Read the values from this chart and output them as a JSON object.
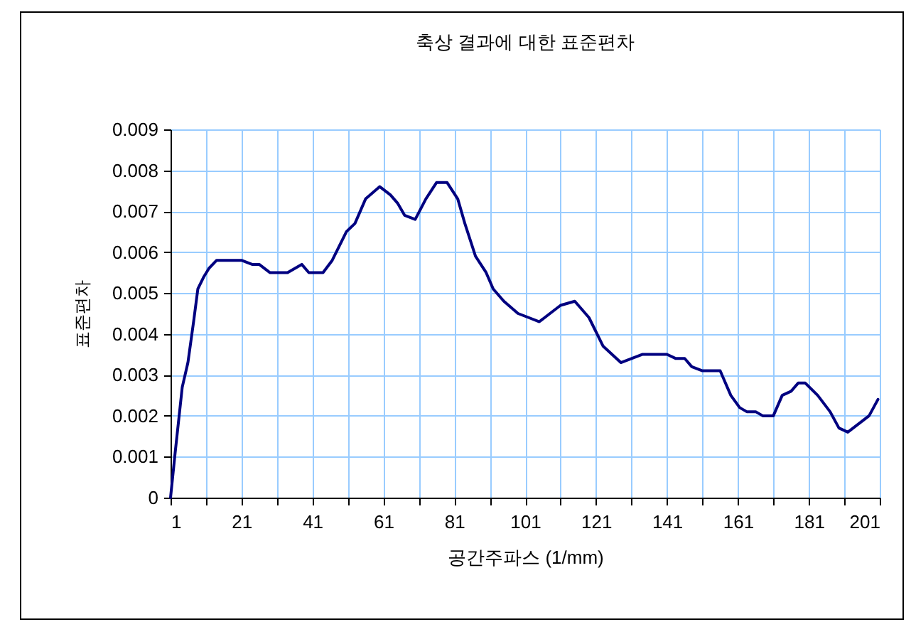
{
  "chart_data": {
    "type": "line",
    "title": "축상 결과에 대한 표준편차",
    "xlabel": "공간주파스 (1/mm)",
    "ylabel": "표준편차",
    "x": [
      1,
      2.3,
      4.3,
      5.9,
      7.5,
      8.7,
      10.4,
      11.8,
      14,
      18,
      21,
      24,
      26,
      29,
      32,
      34,
      36,
      38,
      40,
      44,
      46.6,
      50.6,
      53,
      56,
      60,
      63,
      65,
      67,
      70,
      73,
      76,
      79,
      82,
      84,
      87,
      90,
      92,
      95,
      99,
      102,
      105,
      108,
      111,
      115,
      119,
      123,
      128,
      131,
      134,
      136,
      139,
      141,
      143.5,
      146,
      148,
      151,
      154,
      156,
      159,
      161.5,
      163.5,
      166,
      168,
      171,
      173.5,
      176,
      178,
      180,
      183.5,
      187,
      189.5,
      192,
      195,
      198,
      200.5
    ],
    "series": [
      {
        "color": "#000080",
        "values": [
          0,
          0.0011,
          0.0027,
          0.0033,
          0.0043,
          0.0051,
          0.0054,
          0.0056,
          0.0058,
          0.0058,
          0.0058,
          0.0057,
          0.0057,
          0.0055,
          0.0055,
          0.0055,
          0.0056,
          0.0057,
          0.0055,
          0.0055,
          0.0058,
          0.0065,
          0.0067,
          0.0073,
          0.0076,
          0.0074,
          0.0072,
          0.0069,
          0.0068,
          0.0073,
          0.0077,
          0.0077,
          0.0073,
          0.0067,
          0.0059,
          0.0055,
          0.0051,
          0.0048,
          0.0045,
          0.0044,
          0.0043,
          0.0045,
          0.0047,
          0.0048,
          0.0044,
          0.0037,
          0.0033,
          0.0034,
          0.0035,
          0.0035,
          0.0035,
          0.0035,
          0.0034,
          0.0034,
          0.0032,
          0.0031,
          0.0031,
          0.0031,
          0.0025,
          0.0022,
          0.0021,
          0.0021,
          0.002,
          0.002,
          0.0025,
          0.0026,
          0.0028,
          0.0028,
          0.0025,
          0.0021,
          0.0017,
          0.0016,
          0.0018,
          0.002,
          0.0024
        ]
      }
    ],
    "xlim": [
      1,
      201
    ],
    "xticks": [
      1,
      {
        "value": 11,
        "label": null
      },
      21,
      {
        "value": 31,
        "label": null
      },
      41,
      {
        "value": 51,
        "label": null
      },
      61,
      {
        "value": 71,
        "label": null
      },
      81,
      {
        "value": 91,
        "label": null
      },
      101,
      {
        "value": 111,
        "label": null
      },
      121,
      {
        "value": 131,
        "label": null
      },
      141,
      {
        "value": 151,
        "label": null
      },
      161,
      {
        "value": 171,
        "label": null
      },
      181,
      {
        "value": 191,
        "label": null
      },
      201
    ],
    "ylim": [
      0,
      0.009
    ],
    "yticks": [
      0,
      0.001,
      0.002,
      0.003,
      0.004,
      0.005,
      0.006,
      0.007,
      0.008,
      0.009
    ],
    "grid": true,
    "marker": "none",
    "line_style": "solid"
  }
}
